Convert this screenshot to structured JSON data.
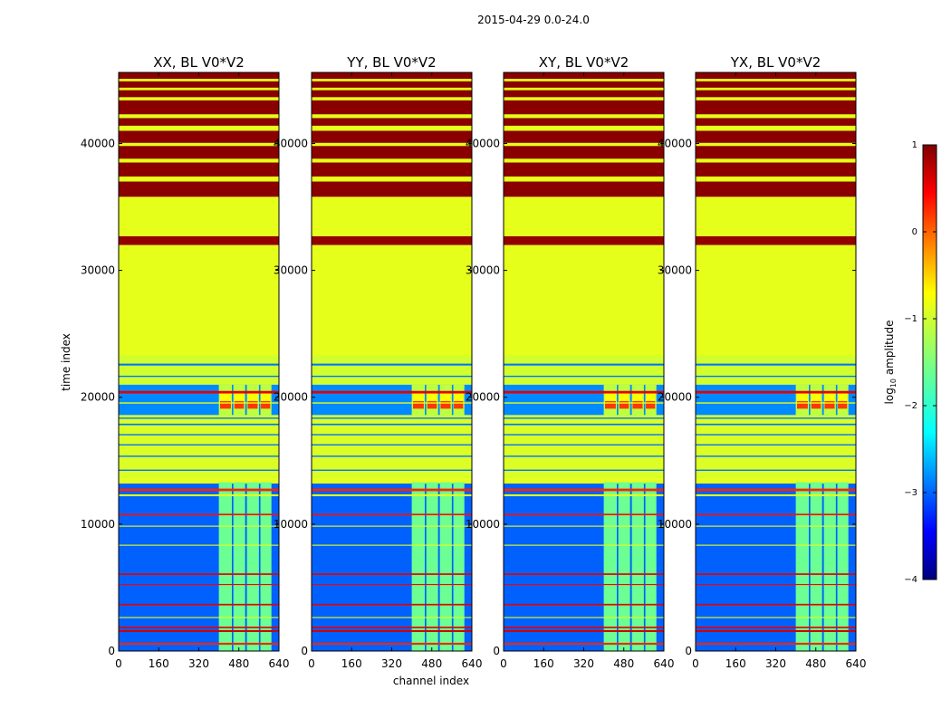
{
  "figure": {
    "suptitle": "2015-04-29 0.0-24.0",
    "xlabel": "channel index",
    "ylabel": "time index"
  },
  "chart_data": {
    "type": "heatmap",
    "x_ticks": [
      0,
      160,
      320,
      480,
      640
    ],
    "y_ticks": [
      0,
      10000,
      20000,
      30000,
      40000
    ],
    "xlim": [
      0,
      640
    ],
    "ylim": [
      0,
      45600
    ],
    "panels": [
      {
        "title": "XX, BL V0*V2"
      },
      {
        "title": "YY, BL V0*V2"
      },
      {
        "title": "XY, BL V0*V2"
      },
      {
        "title": "YX, BL V0*V2"
      }
    ],
    "colorbar": {
      "label": "log",
      "label_sub": "10",
      "label_tail": " amplitude",
      "ticks": [
        "1",
        "0",
        "−1",
        "−2",
        "−3",
        "−4"
      ],
      "vmin": -4,
      "vmax": 1,
      "colormap": "jet"
    },
    "bands": [
      {
        "y0": 0,
        "y1": 13200,
        "level": -2.9
      },
      {
        "y0": 13200,
        "y1": 13600,
        "level": -1.0
      },
      {
        "y0": 13600,
        "y1": 18600,
        "level": -1.05
      },
      {
        "y0": 18600,
        "y1": 21000,
        "level": -2.7
      },
      {
        "y0": 21000,
        "y1": 23300,
        "level": -1.1
      },
      {
        "y0": 23300,
        "y1": 32000,
        "level": -1.0
      },
      {
        "y0": 32000,
        "y1": 32700,
        "level": 0.9
      },
      {
        "y0": 32700,
        "y1": 35800,
        "level": -1.0
      },
      {
        "y0": 35800,
        "y1": 45600,
        "level": 0.95
      }
    ],
    "stripes": [
      {
        "y": 500,
        "h": 150,
        "level": 0.2
      },
      {
        "y": 1500,
        "h": 150,
        "level": 0.6
      },
      {
        "y": 1800,
        "h": 120,
        "level": 0.5
      },
      {
        "y": 2600,
        "h": 80,
        "level": -1.0
      },
      {
        "y": 3600,
        "h": 120,
        "level": 0.5
      },
      {
        "y": 5200,
        "h": 80,
        "level": 0.4
      },
      {
        "y": 6000,
        "h": 120,
        "level": 0.5
      },
      {
        "y": 8300,
        "h": 80,
        "level": -1.0
      },
      {
        "y": 9800,
        "h": 80,
        "level": -1.0
      },
      {
        "y": 10700,
        "h": 120,
        "level": 0.3
      },
      {
        "y": 12200,
        "h": 150,
        "level": -1.0
      },
      {
        "y": 12600,
        "h": 200,
        "level": 0.2
      },
      {
        "y": 14200,
        "h": 100,
        "level": -2.8
      },
      {
        "y": 15300,
        "h": 100,
        "level": -2.8
      },
      {
        "y": 16200,
        "h": 100,
        "level": -2.8
      },
      {
        "y": 17000,
        "h": 100,
        "level": -2.8
      },
      {
        "y": 17800,
        "h": 120,
        "level": -2.8
      },
      {
        "y": 18300,
        "h": 100,
        "level": -2.8
      },
      {
        "y": 19500,
        "h": 100,
        "level": -1.0
      },
      {
        "y": 20300,
        "h": 200,
        "level": 0.5
      },
      {
        "y": 21600,
        "h": 100,
        "level": -2.8
      },
      {
        "y": 22500,
        "h": 150,
        "level": -2.8
      },
      {
        "y": 37000,
        "h": 400,
        "level": -1.0
      },
      {
        "y": 38500,
        "h": 300,
        "level": -1.0
      },
      {
        "y": 39800,
        "h": 250,
        "level": -1.0
      },
      {
        "y": 41000,
        "h": 400,
        "level": -1.0
      },
      {
        "y": 42000,
        "h": 300,
        "level": -1.0
      },
      {
        "y": 43400,
        "h": 250,
        "level": -1.0
      },
      {
        "y": 44200,
        "h": 200,
        "level": -1.0
      },
      {
        "y": 44900,
        "h": 200,
        "level": -1.0
      }
    ],
    "hot_columns": [
      {
        "x0": 400,
        "x1": 452,
        "y0": 0,
        "y1": 13300,
        "level": -1.6
      },
      {
        "x0": 458,
        "x1": 505,
        "y0": 0,
        "y1": 13300,
        "level": -1.6
      },
      {
        "x0": 512,
        "x1": 560,
        "y0": 0,
        "y1": 13300,
        "level": -1.6
      },
      {
        "x0": 566,
        "x1": 610,
        "y0": 0,
        "y1": 13300,
        "level": -1.6
      },
      {
        "x0": 400,
        "x1": 452,
        "y0": 18500,
        "y1": 21000,
        "level": -1.2
      },
      {
        "x0": 458,
        "x1": 505,
        "y0": 18500,
        "y1": 21000,
        "level": -1.2
      },
      {
        "x0": 512,
        "x1": 560,
        "y0": 18500,
        "y1": 21000,
        "level": -1.2
      },
      {
        "x0": 566,
        "x1": 610,
        "y0": 18500,
        "y1": 21000,
        "level": -1.2
      }
    ],
    "hot_spots": [
      {
        "x0": 405,
        "x1": 448,
        "y0": 19100,
        "y1": 19700,
        "level": 0.1
      },
      {
        "x0": 462,
        "x1": 500,
        "y0": 19100,
        "y1": 19700,
        "level": 0.1
      },
      {
        "x0": 515,
        "x1": 555,
        "y0": 19100,
        "y1": 19700,
        "level": 0.1
      },
      {
        "x0": 568,
        "x1": 605,
        "y0": 19100,
        "y1": 19700,
        "level": 0.1
      },
      {
        "x0": 405,
        "x1": 448,
        "y0": 19700,
        "y1": 20300,
        "level": -0.9
      },
      {
        "x0": 462,
        "x1": 500,
        "y0": 19700,
        "y1": 20300,
        "level": -0.9
      },
      {
        "x0": 515,
        "x1": 555,
        "y0": 19700,
        "y1": 20300,
        "level": -0.9
      },
      {
        "x0": 568,
        "x1": 605,
        "y0": 19700,
        "y1": 20300,
        "level": -0.9
      }
    ]
  }
}
